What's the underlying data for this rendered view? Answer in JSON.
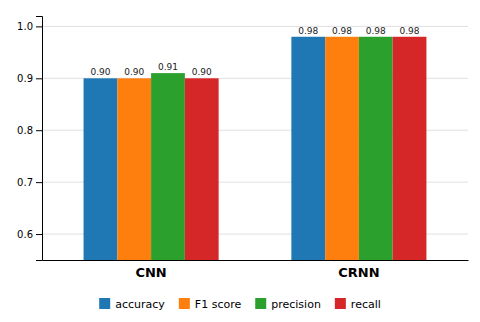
{
  "chart_data": {
    "type": "bar",
    "categories": [
      "CNN",
      "CRNN"
    ],
    "series": [
      {
        "name": "accuracy",
        "values": [
          0.9,
          0.98
        ],
        "value_labels": [
          "0.90",
          "0.98"
        ]
      },
      {
        "name": "F1 score",
        "values": [
          0.9,
          0.98
        ],
        "value_labels": [
          "0.90",
          "0.98"
        ]
      },
      {
        "name": "precision",
        "values": [
          0.91,
          0.98
        ],
        "value_labels": [
          "0.91",
          "0.98"
        ]
      },
      {
        "name": "recall",
        "values": [
          0.9,
          0.98
        ],
        "value_labels": [
          "0.90",
          "0.98"
        ]
      }
    ],
    "ylim": [
      0.55,
      1.02
    ],
    "yticks": [
      0.6,
      0.7,
      0.8,
      0.9,
      {
        "value": 1.0,
        "label": "1.0"
      }
    ],
    "grid": true,
    "data_labels": true,
    "legend": "bottom"
  }
}
